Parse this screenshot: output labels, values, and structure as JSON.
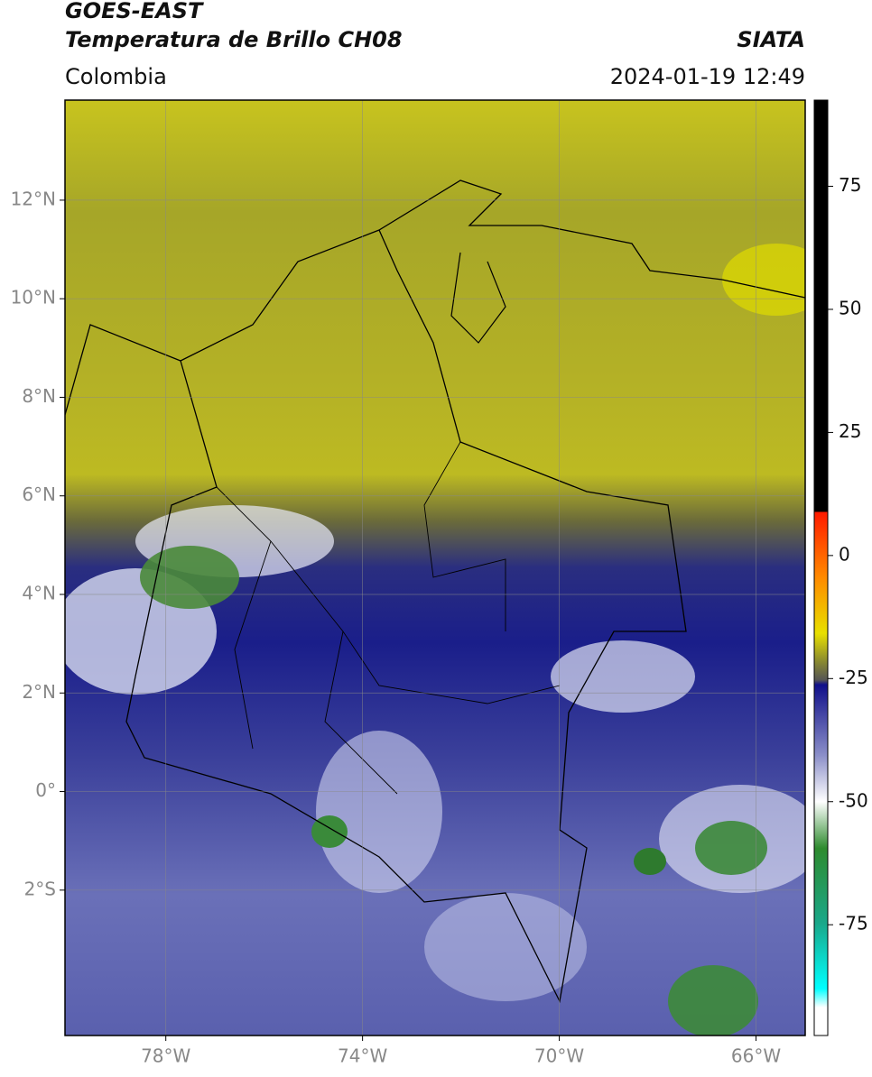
{
  "header": {
    "title": "GOES-EAST",
    "subtitle": "Temperatura de Brillo CH08",
    "source": "SIATA",
    "region": "Colombia",
    "datetime": "2024-01-19 12:49"
  },
  "map": {
    "xlim": [
      -80.05,
      -65.0
    ],
    "ylim": [
      -4.95,
      14.03
    ],
    "xticks": [
      {
        "value": -78,
        "label": "78°W"
      },
      {
        "value": -74,
        "label": "74°W"
      },
      {
        "value": -70,
        "label": "70°W"
      },
      {
        "value": -66,
        "label": "66°W"
      }
    ],
    "yticks": [
      {
        "value": 12,
        "label": "12°N"
      },
      {
        "value": 10,
        "label": "10°N"
      },
      {
        "value": 8,
        "label": "8°N"
      },
      {
        "value": 6,
        "label": "6°N"
      },
      {
        "value": 4,
        "label": "4°N"
      },
      {
        "value": 2,
        "label": "2°N"
      },
      {
        "value": 0,
        "label": "0°"
      },
      {
        "value": -2,
        "label": "2°S"
      }
    ],
    "grid": true
  },
  "colorbar": {
    "lim": [
      -97.5,
      92.5
    ],
    "ticks": [
      75,
      50,
      25,
      0,
      -25,
      -50,
      -75
    ]
  }
}
